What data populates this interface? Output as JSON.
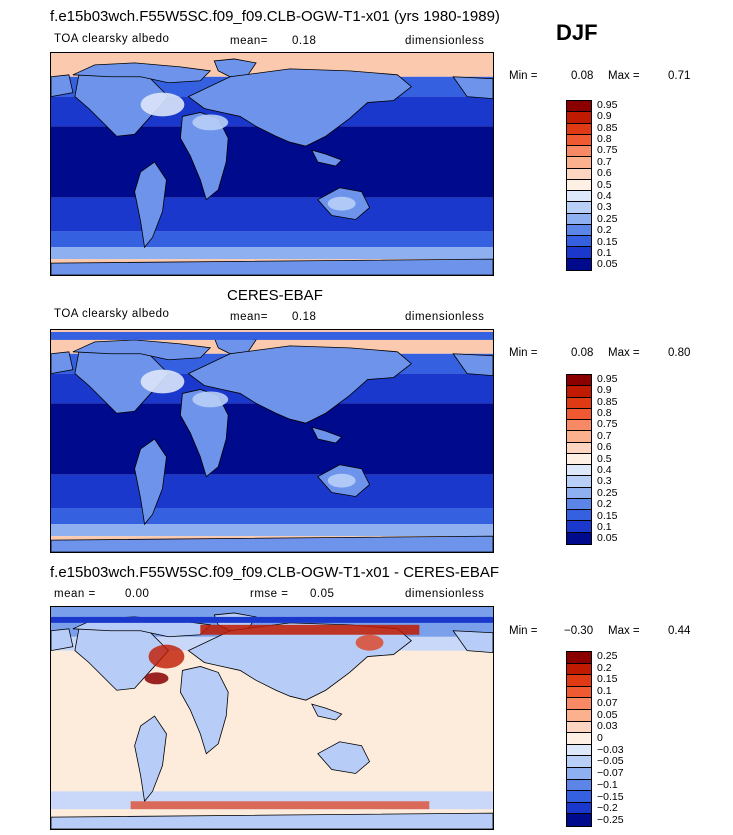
{
  "season": "DJF",
  "panels": [
    {
      "title": "f.e15b03wch.F55W5SC.f09_f09.CLB-OGW-T1-x01 (yrs 1980-1989)",
      "field": "TOA clearsky albedo",
      "stat": "mean=",
      "stat_value": "0.18",
      "units": "dimensionless",
      "min_label": "Min =",
      "min_value": "0.08",
      "max_label": "Max =",
      "max_value": "0.71",
      "levels": [
        "0.95",
        "0.9",
        "0.85",
        "0.8",
        "0.75",
        "0.7",
        "0.6",
        "0.5",
        "0.4",
        "0.3",
        "0.25",
        "0.2",
        "0.15",
        "0.1",
        "0.05"
      ],
      "colors": [
        "#8a0000",
        "#c01a00",
        "#e03a14",
        "#f05a32",
        "#f78a64",
        "#fbb08e",
        "#fdd5c0",
        "#fff0e6",
        "#dde8fb",
        "#b8cff7",
        "#8eb0f0",
        "#5b86e8",
        "#3560e0",
        "#1a38cc",
        "#000a8c"
      ]
    },
    {
      "title": "CERES-EBAF",
      "field": "TOA clearsky albedo",
      "stat": "mean=",
      "stat_value": "0.18",
      "units": "dimensionless",
      "min_label": "Min =",
      "min_value": "0.08",
      "max_label": "Max =",
      "max_value": "0.80",
      "levels": [
        "0.95",
        "0.9",
        "0.85",
        "0.8",
        "0.75",
        "0.7",
        "0.6",
        "0.5",
        "0.4",
        "0.3",
        "0.25",
        "0.2",
        "0.15",
        "0.1",
        "0.05"
      ],
      "colors": [
        "#8a0000",
        "#c01a00",
        "#e03a14",
        "#f05a32",
        "#f78a64",
        "#fbb08e",
        "#fdd5c0",
        "#fff0e6",
        "#dde8fb",
        "#b8cff7",
        "#8eb0f0",
        "#5b86e8",
        "#3560e0",
        "#1a38cc",
        "#000a8c"
      ]
    },
    {
      "title": "f.e15b03wch.F55W5SC.f09_f09.CLB-OGW-T1-x01 - CERES-EBAF",
      "stat": "mean =",
      "stat_value": "0.00",
      "stat2": "rmse =",
      "stat2_value": "0.05",
      "units": "dimensionless",
      "min_label": "Min =",
      "min_value": "−0.30",
      "max_label": "Max =",
      "max_value": "0.44",
      "levels": [
        "0.25",
        "0.2",
        "0.15",
        "0.1",
        "0.07",
        "0.05",
        "0.03",
        "0",
        "−0.03",
        "−0.05",
        "−0.07",
        "−0.1",
        "−0.15",
        "−0.2",
        "−0.25"
      ],
      "colors": [
        "#8a0000",
        "#c01a00",
        "#e03a14",
        "#f05a32",
        "#f78a64",
        "#fbb08e",
        "#fdd5c0",
        "#fff0e6",
        "#dde8fb",
        "#b8cff7",
        "#8eb0f0",
        "#5b86e8",
        "#3560e0",
        "#1a38cc",
        "#000a8c"
      ]
    }
  ]
}
